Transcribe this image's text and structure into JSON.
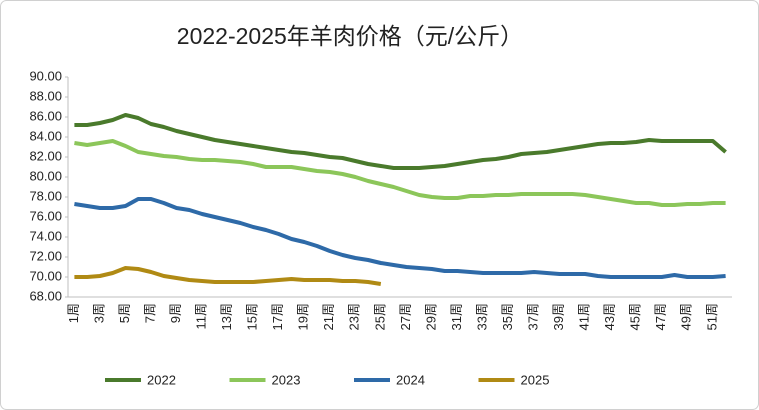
{
  "chart_data": {
    "type": "line",
    "title": "2022-2025年羊肉价格（元/公斤）",
    "categories": [
      "1周",
      null,
      "3周",
      null,
      "5周",
      null,
      "7周",
      null,
      "9周",
      null,
      "11周",
      null,
      "13周",
      null,
      "15周",
      null,
      "17周",
      null,
      "19周",
      null,
      "21周",
      null,
      "23周",
      null,
      "25周",
      null,
      "27周",
      null,
      "29周",
      null,
      "31周",
      null,
      "33周",
      null,
      "35周",
      null,
      "37周",
      null,
      "39周",
      null,
      "41周",
      null,
      "43周",
      null,
      "45周",
      null,
      "47周",
      null,
      "49周",
      null,
      "51周",
      null
    ],
    "series": [
      {
        "name": "2022",
        "color": "#4a7a2c",
        "values": [
          85.2,
          85.2,
          85.4,
          85.7,
          86.2,
          85.9,
          85.3,
          85.0,
          84.6,
          84.3,
          84.0,
          83.7,
          83.5,
          83.3,
          83.1,
          82.9,
          82.7,
          82.5,
          82.4,
          82.2,
          82.0,
          81.9,
          81.6,
          81.3,
          81.1,
          80.9,
          80.9,
          80.9,
          81.0,
          81.1,
          81.3,
          81.5,
          81.7,
          81.8,
          82.0,
          82.3,
          82.4,
          82.5,
          82.7,
          82.9,
          83.1,
          83.3,
          83.4,
          83.4,
          83.5,
          83.7,
          83.6,
          83.6,
          83.6,
          83.6,
          83.6,
          82.5
        ]
      },
      {
        "name": "2023",
        "color": "#8cc65a",
        "values": [
          83.4,
          83.2,
          83.4,
          83.6,
          83.1,
          82.5,
          82.3,
          82.1,
          82.0,
          81.8,
          81.7,
          81.7,
          81.6,
          81.5,
          81.3,
          81.0,
          81.0,
          81.0,
          80.8,
          80.6,
          80.5,
          80.3,
          80.0,
          79.6,
          79.3,
          79.0,
          78.6,
          78.2,
          78.0,
          77.9,
          77.9,
          78.1,
          78.1,
          78.2,
          78.2,
          78.3,
          78.3,
          78.3,
          78.3,
          78.3,
          78.2,
          78.0,
          77.8,
          77.6,
          77.4,
          77.4,
          77.2,
          77.2,
          77.3,
          77.3,
          77.4,
          77.4
        ]
      },
      {
        "name": "2024",
        "color": "#2e6aa8",
        "values": [
          77.3,
          77.1,
          76.9,
          76.9,
          77.1,
          77.8,
          77.8,
          77.4,
          76.9,
          76.7,
          76.3,
          76.0,
          75.7,
          75.4,
          75.0,
          74.7,
          74.3,
          73.8,
          73.5,
          73.1,
          72.6,
          72.2,
          71.9,
          71.7,
          71.4,
          71.2,
          71.0,
          70.9,
          70.8,
          70.6,
          70.6,
          70.5,
          70.4,
          70.4,
          70.4,
          70.4,
          70.5,
          70.4,
          70.3,
          70.3,
          70.3,
          70.1,
          70.0,
          70.0,
          70.0,
          70.0,
          70.0,
          70.2,
          70.0,
          70.0,
          70.0,
          70.1
        ]
      },
      {
        "name": "2025",
        "color": "#b08a14",
        "values": [
          70.0,
          70.0,
          70.1,
          70.4,
          70.9,
          70.8,
          70.5,
          70.1,
          69.9,
          69.7,
          69.6,
          69.5,
          69.5,
          69.5,
          69.5,
          69.6,
          69.7,
          69.8,
          69.7,
          69.7,
          69.7,
          69.6,
          69.6,
          69.5,
          69.3,
          null,
          null,
          null,
          null,
          null,
          null,
          null,
          null,
          null,
          null,
          null,
          null,
          null,
          null,
          null,
          null,
          null,
          null,
          null,
          null,
          null,
          null,
          null,
          null,
          null,
          null,
          null
        ]
      }
    ],
    "ylim": [
      68,
      90
    ],
    "yticks": [
      {
        "value": 68,
        "label": "68.00"
      },
      {
        "value": 70,
        "label": "70.00"
      },
      {
        "value": 72,
        "label": "72.00"
      },
      {
        "value": 74,
        "label": "74.00"
      },
      {
        "value": 76,
        "label": "76.00"
      },
      {
        "value": 78,
        "label": "78.00"
      },
      {
        "value": 80,
        "label": "80.00"
      },
      {
        "value": 82,
        "label": "82.00"
      },
      {
        "value": 84,
        "label": "84.00"
      },
      {
        "value": 86,
        "label": "86.00"
      },
      {
        "value": 88,
        "label": "88.00"
      },
      {
        "value": 90,
        "label": "90.00"
      }
    ],
    "grid": false,
    "legend": "bottom"
  }
}
